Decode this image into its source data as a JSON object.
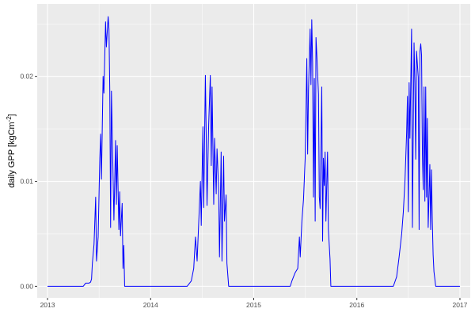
{
  "chart_data": {
    "type": "line",
    "title": "",
    "xlabel": "",
    "ylabel": {
      "main": "daily GPP [kgCm",
      "sup": "-2",
      "end": "]"
    },
    "xlim": [
      2012.9,
      2017.1
    ],
    "ylim": [
      -0.0011,
      0.0269
    ],
    "x_ticks": [
      2013,
      2014,
      2015,
      2016,
      2017
    ],
    "x_tick_labels": [
      "2013",
      "2014",
      "2015",
      "2016",
      "2017"
    ],
    "y_ticks": [
      0,
      0.01,
      0.02
    ],
    "y_tick_labels": [
      "0.00",
      "0.01",
      "0.02"
    ],
    "grid": true,
    "panel_background": "#EBEBEB",
    "line_color": "#0000FF",
    "series": [
      {
        "points": [
          [
            2013.0,
            0
          ],
          [
            2013.346,
            0
          ],
          [
            2013.37,
            0.0003
          ],
          [
            2013.402,
            0.0003
          ],
          [
            2013.418,
            0.0004
          ],
          [
            2013.427,
            0.0007
          ],
          [
            2013.435,
            0.0022
          ],
          [
            2013.451,
            0.004
          ],
          [
            2013.467,
            0.0085
          ],
          [
            2013.475,
            0.0024
          ],
          [
            2013.491,
            0.0047
          ],
          [
            2013.507,
            0.0122
          ],
          [
            2013.515,
            0.0145
          ],
          [
            2013.523,
            0.0102
          ],
          [
            2013.539,
            0.02
          ],
          [
            2013.547,
            0.0184
          ],
          [
            2013.563,
            0.0252
          ],
          [
            2013.571,
            0.0228
          ],
          [
            2013.588,
            0.0257
          ],
          [
            2013.596,
            0.0245
          ],
          [
            2013.604,
            0.0186
          ],
          [
            2013.612,
            0.0056
          ],
          [
            2013.62,
            0.0186
          ],
          [
            2013.628,
            0.0145
          ],
          [
            2013.644,
            0.0063
          ],
          [
            2013.66,
            0.0139
          ],
          [
            2013.668,
            0.0078
          ],
          [
            2013.676,
            0.0134
          ],
          [
            2013.692,
            0.0054
          ],
          [
            2013.7,
            0.009
          ],
          [
            2013.708,
            0.0048
          ],
          [
            2013.724,
            0.0079
          ],
          [
            2013.732,
            0.0017
          ],
          [
            2013.74,
            0.0039
          ],
          [
            2013.748,
            0
          ],
          [
            2014.354,
            0
          ],
          [
            2014.394,
            0.0005
          ],
          [
            2014.418,
            0.0017
          ],
          [
            2014.435,
            0.0047
          ],
          [
            2014.451,
            0.0024
          ],
          [
            2014.467,
            0.0062
          ],
          [
            2014.483,
            0.01
          ],
          [
            2014.491,
            0.0058
          ],
          [
            2014.507,
            0.0152
          ],
          [
            2014.515,
            0.0075
          ],
          [
            2014.531,
            0.0201
          ],
          [
            2014.539,
            0.0145
          ],
          [
            2014.547,
            0.0077
          ],
          [
            2014.563,
            0.0154
          ],
          [
            2014.579,
            0.0201
          ],
          [
            2014.588,
            0.0115
          ],
          [
            2014.596,
            0.019
          ],
          [
            2014.612,
            0.0078
          ],
          [
            2014.62,
            0.0141
          ],
          [
            2014.636,
            0.0088
          ],
          [
            2014.644,
            0.0131
          ],
          [
            2014.66,
            0.0092
          ],
          [
            2014.668,
            0.0028
          ],
          [
            2014.684,
            0.0128
          ],
          [
            2014.692,
            0.0024
          ],
          [
            2014.708,
            0.0124
          ],
          [
            2014.716,
            0.0062
          ],
          [
            2014.732,
            0.0087
          ],
          [
            2014.74,
            0.0022
          ],
          [
            2014.757,
            0
          ],
          [
            2015.354,
            0
          ],
          [
            2015.37,
            0.0005
          ],
          [
            2015.402,
            0.0013
          ],
          [
            2015.427,
            0.0017
          ],
          [
            2015.443,
            0.0047
          ],
          [
            2015.451,
            0.0028
          ],
          [
            2015.467,
            0.0062
          ],
          [
            2015.483,
            0.0083
          ],
          [
            2015.499,
            0.0122
          ],
          [
            2015.515,
            0.0217
          ],
          [
            2015.523,
            0.0126
          ],
          [
            2015.531,
            0.0186
          ],
          [
            2015.547,
            0.0245
          ],
          [
            2015.555,
            0.0192
          ],
          [
            2015.563,
            0.0254
          ],
          [
            2015.571,
            0.0213
          ],
          [
            2015.579,
            0.0085
          ],
          [
            2015.588,
            0.0198
          ],
          [
            2015.596,
            0.0062
          ],
          [
            2015.604,
            0.0237
          ],
          [
            2015.612,
            0.022
          ],
          [
            2015.628,
            0.0183
          ],
          [
            2015.636,
            0.0085
          ],
          [
            2015.644,
            0.0074
          ],
          [
            2015.66,
            0.019
          ],
          [
            2015.668,
            0.0043
          ],
          [
            2015.676,
            0.0122
          ],
          [
            2015.684,
            0.0096
          ],
          [
            2015.692,
            0.0128
          ],
          [
            2015.7,
            0.0062
          ],
          [
            2015.708,
            0.0096
          ],
          [
            2015.716,
            0.0128
          ],
          [
            2015.724,
            0.0054
          ],
          [
            2015.74,
            0.0026
          ],
          [
            2015.748,
            0
          ],
          [
            2016.354,
            0
          ],
          [
            2016.386,
            0.0009
          ],
          [
            2016.41,
            0.0028
          ],
          [
            2016.435,
            0.005
          ],
          [
            2016.451,
            0.0071
          ],
          [
            2016.467,
            0.0101
          ],
          [
            2016.483,
            0.0146
          ],
          [
            2016.491,
            0.0181
          ],
          [
            2016.499,
            0.0071
          ],
          [
            2016.507,
            0.0194
          ],
          [
            2016.515,
            0.0141
          ],
          [
            2016.531,
            0.0245
          ],
          [
            2016.539,
            0.0056
          ],
          [
            2016.555,
            0.0232
          ],
          [
            2016.563,
            0.0194
          ],
          [
            2016.571,
            0.0121
          ],
          [
            2016.579,
            0.0224
          ],
          [
            2016.596,
            0.0199
          ],
          [
            2016.604,
            0.0054
          ],
          [
            2016.612,
            0.0224
          ],
          [
            2016.62,
            0.0231
          ],
          [
            2016.628,
            0.022
          ],
          [
            2016.636,
            0.0126
          ],
          [
            2016.644,
            0.0092
          ],
          [
            2016.652,
            0.019
          ],
          [
            2016.66,
            0.0081
          ],
          [
            2016.668,
            0.019
          ],
          [
            2016.676,
            0.0085
          ],
          [
            2016.684,
            0.016
          ],
          [
            2016.692,
            0.0056
          ],
          [
            2016.7,
            0.0085
          ],
          [
            2016.708,
            0.0116
          ],
          [
            2016.716,
            0.0054
          ],
          [
            2016.724,
            0.0111
          ],
          [
            2016.732,
            0.0062
          ],
          [
            2016.74,
            0.003
          ],
          [
            2016.748,
            0.0014
          ],
          [
            2016.765,
            0
          ],
          [
            2017.0,
            0
          ]
        ]
      }
    ]
  }
}
